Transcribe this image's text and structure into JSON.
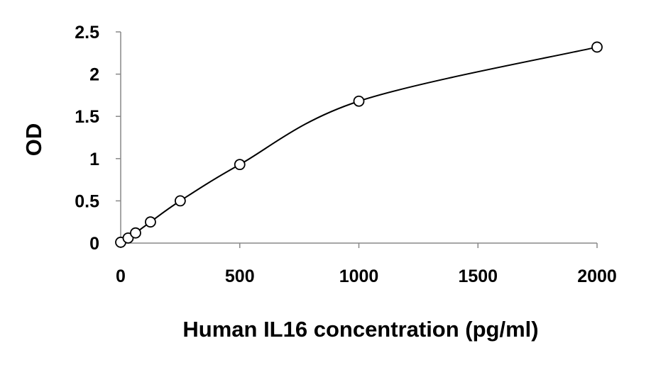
{
  "chart_data": {
    "type": "scatter",
    "title": "",
    "xlabel": "Human IL16 concentration (pg/ml)",
    "ylabel": "OD",
    "xlim": [
      0,
      2000
    ],
    "ylim": [
      0,
      2.5
    ],
    "x_ticks": [
      "0",
      "500",
      "1000",
      "1500",
      "2000"
    ],
    "y_ticks": [
      "0",
      "0.5",
      "1",
      "1.5",
      "2",
      "2.5"
    ],
    "grid": false,
    "legend": "none",
    "series": [
      {
        "points": [
          {
            "x": 0,
            "y": 0.01
          },
          {
            "x": 31.25,
            "y": 0.06
          },
          {
            "x": 62.5,
            "y": 0.12
          },
          {
            "x": 125,
            "y": 0.25
          },
          {
            "x": 250,
            "y": 0.5
          },
          {
            "x": 500,
            "y": 0.93
          },
          {
            "x": 1000,
            "y": 1.68
          },
          {
            "x": 2000,
            "y": 2.32
          }
        ],
        "trendline": "smooth fitted curve",
        "marker": "open circle",
        "color": "#000000"
      }
    ]
  }
}
